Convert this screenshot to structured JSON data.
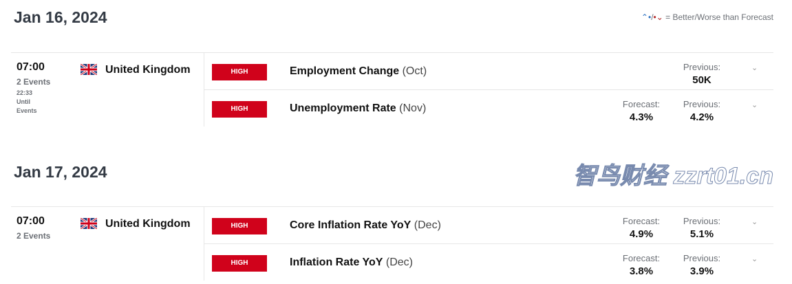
{
  "legend": {
    "up_icon": "better-arrow-icon",
    "down_icon": "worse-arrow-icon",
    "text": "= Better/Worse than Forecast"
  },
  "days": [
    {
      "date": "Jan 16, 2024",
      "time": "07:00",
      "events_count": "2 Events",
      "countdown": "22:33",
      "until": "Until",
      "events_word": "Events",
      "country": "United Kingdom",
      "events": [
        {
          "impact": "HIGH",
          "name": "Employment Change",
          "period": "(Oct)",
          "forecast_label": "",
          "forecast": "",
          "previous_label": "Previous:",
          "previous": "50K"
        },
        {
          "impact": "HIGH",
          "name": "Unemployment Rate",
          "period": "(Nov)",
          "forecast_label": "Forecast:",
          "forecast": "4.3%",
          "previous_label": "Previous:",
          "previous": "4.2%"
        }
      ]
    },
    {
      "date": "Jan 17, 2024",
      "time": "07:00",
      "events_count": "2 Events",
      "country": "United Kingdom",
      "events": [
        {
          "impact": "HIGH",
          "name": "Core Inflation Rate YoY",
          "period": "(Dec)",
          "forecast_label": "Forecast:",
          "forecast": "4.9%",
          "previous_label": "Previous:",
          "previous": "5.1%"
        },
        {
          "impact": "HIGH",
          "name": "Inflation Rate YoY",
          "period": "(Dec)",
          "forecast_label": "Forecast:",
          "forecast": "3.8%",
          "previous_label": "Previous:",
          "previous": "3.9%"
        }
      ]
    }
  ],
  "colors": {
    "high": "#d0021b",
    "better": "#2a6fc0",
    "worse": "#b22222"
  },
  "watermark": "智鸟财经 zzrt01.cn"
}
